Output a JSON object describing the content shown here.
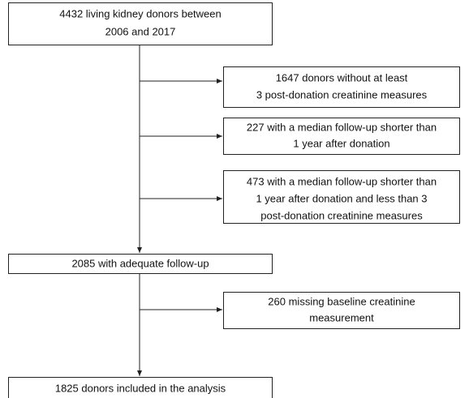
{
  "nodes": [
    {
      "lines": [
        "4432 living kidney donors between",
        "2006 and 2017"
      ]
    },
    {
      "lines": [
        "1647 donors without at least",
        "3 post-donation creatinine measures"
      ]
    },
    {
      "lines": [
        "227 with a median follow-up shorter than",
        "1 year after donation"
      ]
    },
    {
      "lines": [
        "473 with a median follow-up shorter than",
        "1 year after donation and less than 3",
        "post-donation creatinine measures"
      ]
    },
    {
      "lines": [
        "2085 with adequate follow-up"
      ]
    },
    {
      "lines": [
        "260 missing baseline creatinine",
        "measurement"
      ]
    },
    {
      "lines": [
        "1825 donors included in the analysis"
      ]
    }
  ]
}
